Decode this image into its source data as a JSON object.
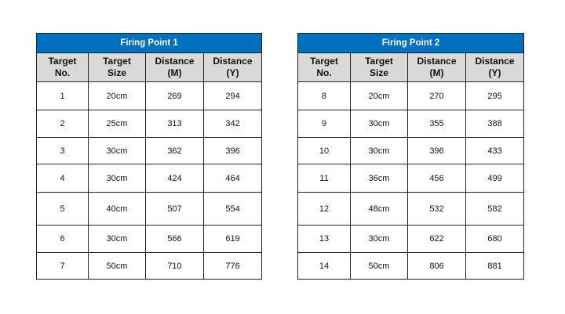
{
  "colors": {
    "title_bg": "#0070C0",
    "header_bg": "#D9D9D9"
  },
  "tables": [
    {
      "title": "Firing Point 1",
      "headers": [
        [
          "Target",
          "No."
        ],
        [
          "Target",
          "Size"
        ],
        [
          "Distance",
          "(M)"
        ],
        [
          "Distance",
          "(Y)"
        ]
      ],
      "rows": [
        [
          "1",
          "20cm",
          "269",
          "294"
        ],
        [
          "2",
          "25cm",
          "313",
          "342"
        ],
        [
          "3",
          "30cm",
          "362",
          "396"
        ],
        [
          "4",
          "30cm",
          "424",
          "464"
        ],
        [
          "5",
          "40cm",
          "507",
          "554"
        ],
        [
          "6",
          "30cm",
          "566",
          "619"
        ],
        [
          "7",
          "50cm",
          "710",
          "776"
        ]
      ]
    },
    {
      "title": "Firing Point 2",
      "headers": [
        [
          "Target",
          "No."
        ],
        [
          "Target",
          "Size"
        ],
        [
          "Distance",
          "(M)"
        ],
        [
          "Distance",
          "(Y)"
        ]
      ],
      "rows": [
        [
          "8",
          "20cm",
          "270",
          "295"
        ],
        [
          "9",
          "30cm",
          "355",
          "388"
        ],
        [
          "10",
          "30cm",
          "396",
          "433"
        ],
        [
          "11",
          "36cm",
          "456",
          "499"
        ],
        [
          "12",
          "48cm",
          "532",
          "582"
        ],
        [
          "13",
          "30cm",
          "622",
          "680"
        ],
        [
          "14",
          "50cm",
          "806",
          "881"
        ]
      ]
    }
  ]
}
